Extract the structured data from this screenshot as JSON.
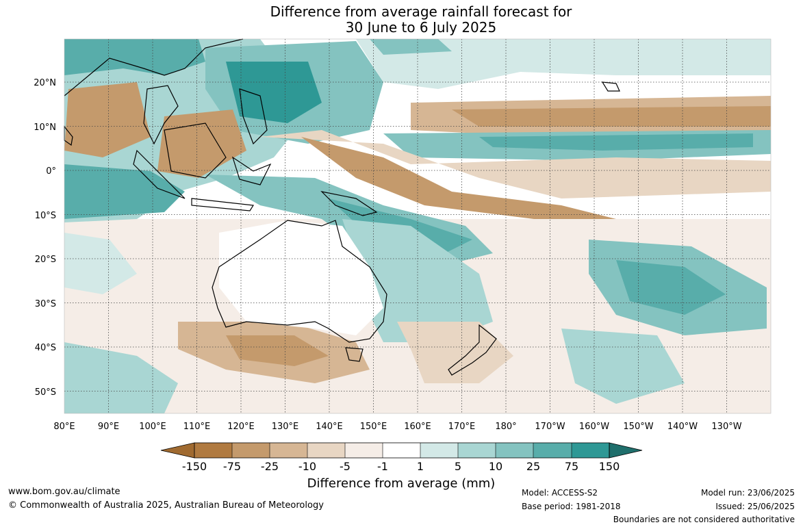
{
  "title": {
    "line1": "Difference from average rainfall forecast for",
    "line2": "30 June to 6 July 2025"
  },
  "map": {
    "lat_labels": [
      "20°N",
      "10°N",
      "0°",
      "10°S",
      "20°S",
      "30°S",
      "40°S",
      "50°S"
    ],
    "lon_labels": [
      "80°E",
      "90°E",
      "100°E",
      "110°E",
      "120°E",
      "130°E",
      "140°E",
      "150°E",
      "160°E",
      "170°E",
      "180°",
      "170°W",
      "160°W",
      "150°W",
      "140°W",
      "130°W"
    ],
    "colors": {
      "dry_strong": "#b07a40",
      "dry_med": "#c49a6c",
      "dry_light": "#d6b694",
      "dry_faint": "#e8d6c3",
      "dry_trace": "#f5ede7",
      "neutral": "#ffffff",
      "wet_trace": "#d3e9e7",
      "wet_faint": "#a9d6d3",
      "wet_light": "#84c3c0",
      "wet_med": "#58adaa",
      "wet_strong": "#2e9895",
      "wet_extreme": "#1f6f6c"
    }
  },
  "colorbar": {
    "ticks": [
      "-150",
      "-75",
      "-25",
      "-10",
      "-5",
      "-1",
      "1",
      "5",
      "10",
      "25",
      "75",
      "150"
    ],
    "label": "Difference from average (mm)"
  },
  "footer": {
    "website": "www.bom.gov.au/climate",
    "copyright": "© Commonwealth of Australia 2025, Australian Bureau of Meteorology",
    "model": "Model: ACCESS-S2",
    "base_period": "Base period: 1981-2018",
    "model_run": "Model run: 23/06/2025",
    "issued": "Issued: 25/06/2025",
    "disclaimer": "Boundaries are not considered authoritative"
  }
}
